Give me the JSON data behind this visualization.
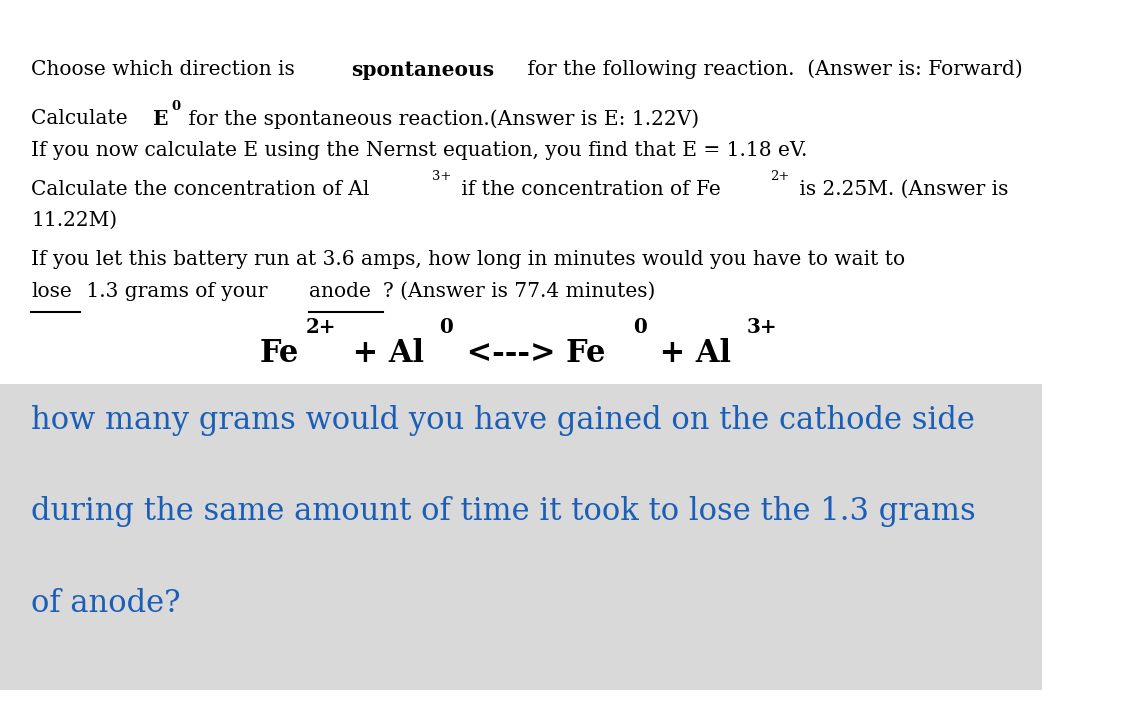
{
  "bg_color": "#ffffff",
  "highlight_color": "#d9d9d9",
  "blue_color": "#1a5eb8",
  "black_color": "#000000",
  "figsize": [
    11.34,
    7.04
  ],
  "dpi": 100,
  "line1_pre": "Choose which direction is ",
  "line1_bold": "spontaneous",
  "line1_post": " for the following reaction.  (Answer is: Forward)",
  "line2_pre": "Calculate ",
  "line2_bold": "E",
  "line2_sup": "0",
  "line2_post": " for the spontaneous reaction.(Answer is E: 1.22V)",
  "line3": "If you now calculate E using the Nernst equation, you find that E = 1.18 eV.",
  "line4_pre": "Calculate the concentration of Al",
  "line4_sup1": "3+",
  "line4_mid": " if the concentration of Fe",
  "line4_sup2": "2+",
  "line4_post": " is 2.25M. (Answer is",
  "line5": "11.22M)",
  "line6a": "If you let this battery run at 3.6 amps, how long in minutes would you have to wait to",
  "line6b_u1": "lose",
  "line6b_mid": " 1.3 grams of your ",
  "line6b_u2": "anode",
  "line6b_post": "? (Answer is 77.4 minutes)",
  "eq_parts": [
    [
      "Fe",
      false
    ],
    [
      "2+",
      true
    ],
    [
      " + Al",
      false
    ],
    [
      "0",
      true
    ],
    [
      " <---> Fe",
      false
    ],
    [
      "0",
      true
    ],
    [
      " + Al",
      false
    ],
    [
      "3+",
      true
    ]
  ],
  "question_line1": "how many grams would you have gained on the cathode side",
  "question_line2": "during the same amount of time it took to lose the 1.3 grams",
  "question_line3": "of anode?"
}
